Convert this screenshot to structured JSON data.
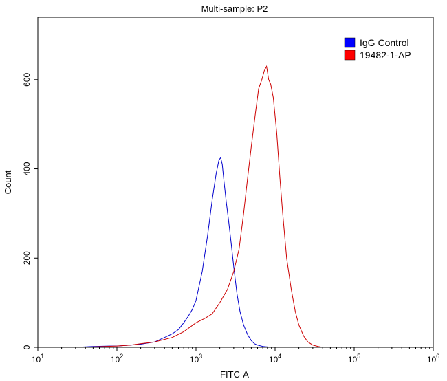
{
  "chart_data": {
    "type": "line",
    "title": "Multi-sample: P2",
    "xlabel": "FITC-A",
    "ylabel": "Count",
    "x_scale": "log",
    "xlim": [
      10,
      1000000
    ],
    "ylim": [
      0,
      740
    ],
    "x_ticks": [
      10,
      100,
      1000,
      10000,
      100000,
      1000000
    ],
    "x_tick_labels": [
      {
        "base": "10",
        "exp": "1"
      },
      {
        "base": "10",
        "exp": "2"
      },
      {
        "base": "10",
        "exp": "3"
      },
      {
        "base": "10",
        "exp": "4"
      },
      {
        "base": "10",
        "exp": "5"
      },
      {
        "base": "10",
        "exp": "6"
      }
    ],
    "y_ticks": [
      0,
      200,
      400,
      600
    ],
    "y_tick_labels": [
      "0",
      "200",
      "400",
      "600"
    ],
    "grid": false,
    "legend_position": "top-right",
    "series": [
      {
        "name": "IgG Control",
        "color": "#0000cc",
        "legend_color": "#0000ff",
        "x": [
          30,
          50,
          80,
          100,
          150,
          200,
          300,
          400,
          500,
          600,
          700,
          800,
          900,
          1000,
          1200,
          1400,
          1600,
          1800,
          1950,
          2050,
          2150,
          2250,
          2400,
          2600,
          2800,
          3000,
          3300,
          3600,
          4000,
          4500,
          5000,
          5500,
          6000,
          7000,
          8000,
          9000
        ],
        "y": [
          0,
          2,
          3,
          3,
          5,
          7,
          12,
          22,
          30,
          40,
          55,
          70,
          85,
          105,
          170,
          250,
          330,
          390,
          420,
          425,
          410,
          375,
          330,
          280,
          230,
          180,
          120,
          80,
          50,
          28,
          15,
          8,
          5,
          2,
          1,
          0
        ]
      },
      {
        "name": "19482-1-AP",
        "color": "#cc0000",
        "legend_color": "#ff0000",
        "x": [
          30,
          50,
          100,
          150,
          200,
          300,
          500,
          700,
          1000,
          1300,
          1600,
          2000,
          2500,
          3000,
          3500,
          4000,
          4500,
          5000,
          5600,
          6200,
          6800,
          7300,
          7800,
          8300,
          8800,
          9500,
          10500,
          11500,
          12500,
          14000,
          16000,
          18000,
          20000,
          23000,
          26000,
          30000,
          35000,
          40000
        ],
        "y": [
          0,
          1,
          3,
          5,
          8,
          12,
          22,
          35,
          55,
          65,
          75,
          100,
          130,
          170,
          220,
          300,
          380,
          450,
          520,
          580,
          600,
          620,
          630,
          600,
          590,
          560,
          480,
          380,
          300,
          200,
          130,
          80,
          50,
          25,
          12,
          5,
          2,
          0
        ]
      }
    ]
  }
}
